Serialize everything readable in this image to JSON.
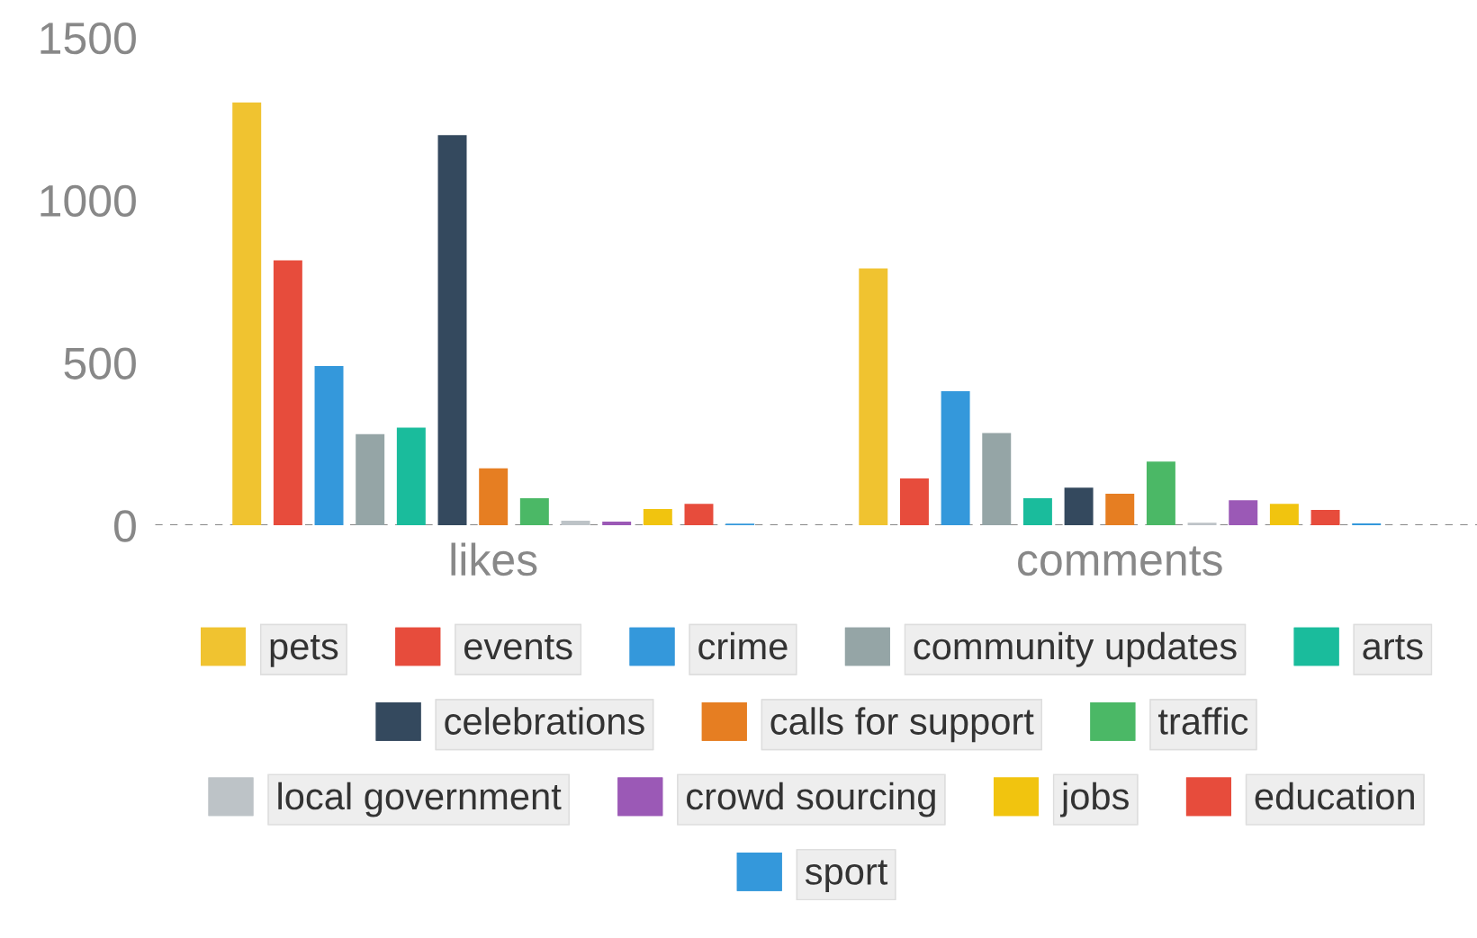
{
  "chart_data": {
    "type": "bar",
    "categories": [
      "likes",
      "comments"
    ],
    "series": [
      {
        "name": "pets",
        "color": "#f0c330",
        "values": [
          1300,
          790
        ]
      },
      {
        "name": "events",
        "color": "#e74c3c",
        "values": [
          815,
          144
        ]
      },
      {
        "name": "crime",
        "color": "#3498db",
        "values": [
          490,
          412
        ]
      },
      {
        "name": "community updates",
        "color": "#95a5a6",
        "values": [
          280,
          284
        ]
      },
      {
        "name": "arts",
        "color": "#1abc9c",
        "values": [
          300,
          83
        ]
      },
      {
        "name": "celebrations",
        "color": "#34495e",
        "values": [
          1200,
          116
        ]
      },
      {
        "name": "calls for support",
        "color": "#e67e22",
        "values": [
          175,
          97
        ]
      },
      {
        "name": "traffic",
        "color": "#4bb866",
        "values": [
          83,
          196
        ]
      },
      {
        "name": "local government",
        "color": "#bdc3c7",
        "values": [
          14,
          8
        ]
      },
      {
        "name": "crowd sourcing",
        "color": "#9b59b6",
        "values": [
          11,
          77
        ]
      },
      {
        "name": "jobs",
        "color": "#f1c40f",
        "values": [
          50,
          66
        ]
      },
      {
        "name": "education",
        "color": "#e74c3c",
        "values": [
          66,
          47
        ]
      },
      {
        "name": "sport",
        "color": "#3498db",
        "values": [
          5,
          6
        ]
      }
    ],
    "ylim": [
      0,
      1500
    ],
    "yticks": [
      0,
      500,
      1000,
      1500
    ],
    "grid": false,
    "legend": "bottom",
    "ref_lines": [
      {
        "axis": "y",
        "value": 0,
        "label": null,
        "color": "#888888",
        "line_style": "dashed"
      }
    ]
  }
}
